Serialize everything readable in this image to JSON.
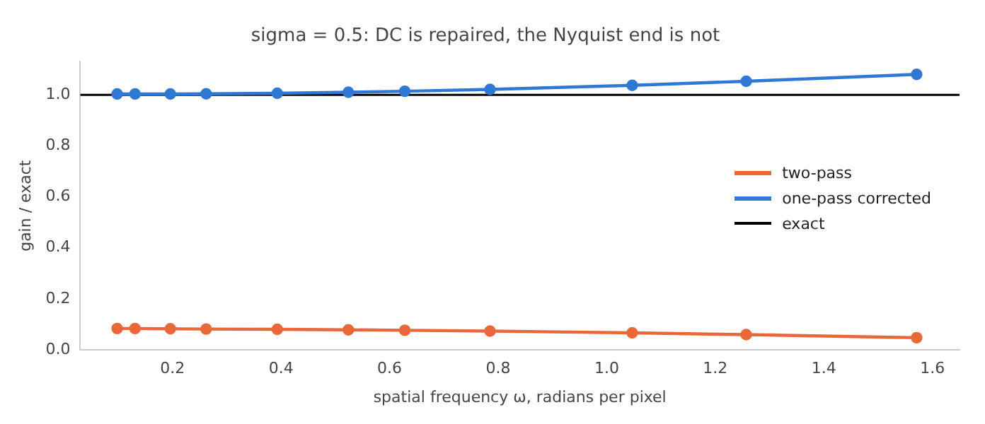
{
  "chart_data": {
    "type": "line",
    "title": "sigma = 0.5: DC is repaired, the Nyquist end is not",
    "xlabel": "spatial frequency ω, radians per pixel",
    "ylabel": "gain / exact",
    "x": [
      0.098,
      0.131,
      0.196,
      0.262,
      0.393,
      0.524,
      0.628,
      0.785,
      1.047,
      1.257,
      1.571
    ],
    "series": [
      {
        "name": "two-pass",
        "color": "#e8683a",
        "values": [
          0.084,
          0.084,
          0.083,
          0.082,
          0.081,
          0.079,
          0.077,
          0.074,
          0.067,
          0.06,
          0.048
        ]
      },
      {
        "name": "one-pass corrected",
        "color": "#2f78d4",
        "values": [
          1.003,
          1.003,
          1.003,
          1.004,
          1.006,
          1.01,
          1.014,
          1.021,
          1.037,
          1.053,
          1.08
        ]
      }
    ],
    "ref_lines": [
      {
        "axis": "y",
        "value": 1,
        "label": "exact",
        "color": "#000000"
      }
    ],
    "xlim": [
      0.03,
      1.65
    ],
    "xticks": [
      0.2,
      0.4,
      0.6,
      0.8,
      {
        "value": 1,
        "label": "1.0"
      },
      1.2,
      1.4,
      1.6
    ],
    "ylim": [
      0,
      1.13
    ],
    "yticks": [
      {
        "value": 0,
        "label": "0.0"
      },
      0.2,
      0.4,
      0.6,
      0.8,
      {
        "value": 1,
        "label": "1.0"
      }
    ],
    "marker": "circle",
    "line_style": "solid",
    "grid": false,
    "legend": "right"
  }
}
